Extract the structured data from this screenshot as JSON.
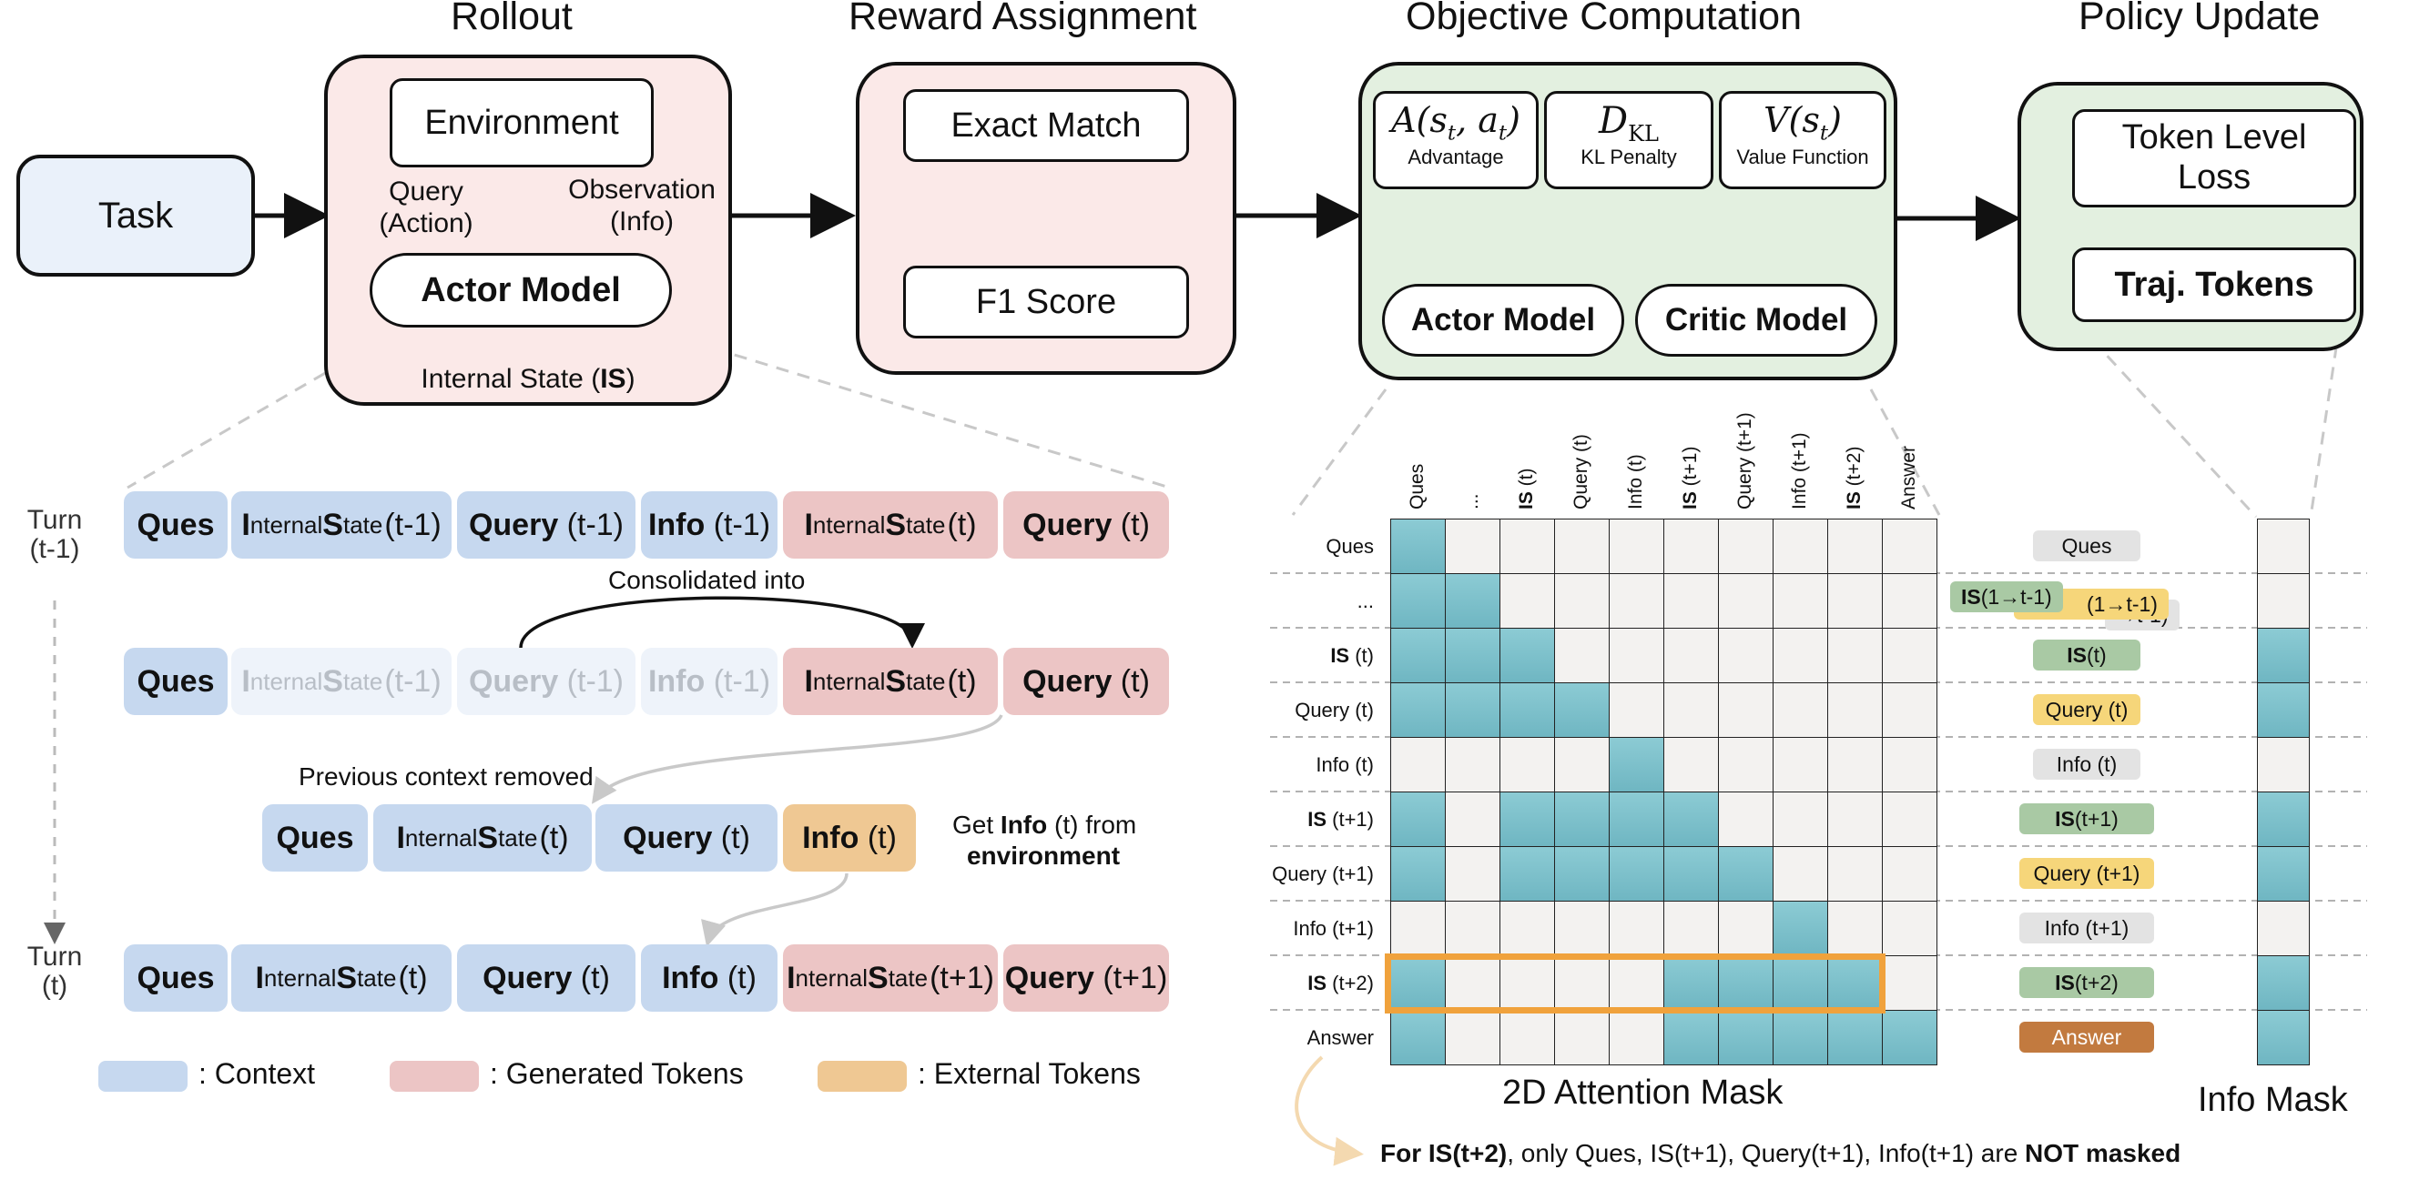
{
  "headers": {
    "rollout": "Rollout",
    "reward": "Reward Assignment",
    "objective": "Objective Computation",
    "policy": "Policy Update"
  },
  "task": "Task",
  "rollout": {
    "environment": "Environment",
    "query_label_1": "Query",
    "query_label_2": "(Action)",
    "obs_label_1": "Observation",
    "obs_label_2": "(Info)",
    "actor": "Actor Model",
    "internal_state_prefix": "Internal State (",
    "internal_state_bold": "IS",
    "internal_state_suffix": ")"
  },
  "reward": {
    "exact_match": "Exact Match",
    "f1": "F1 Score"
  },
  "objective": {
    "advantage_sym": "A(s_t, a_t)",
    "advantage": "Advantage",
    "kl_sym": "D_KL",
    "kl": "KL Penalty",
    "value_sym": "V(s_t)",
    "value": "Value Function",
    "actor": "Actor Model",
    "critic": "Critic Model"
  },
  "policy": {
    "token_loss_1": "Token Level",
    "token_loss_2": "Loss",
    "traj": "Traj. Tokens"
  },
  "turns": {
    "prev_1": "Turn",
    "prev_2": "(t-1)",
    "cur_1": "Turn",
    "cur_2": "(t)"
  },
  "rows": {
    "row1": [
      {
        "kind": "ques",
        "color": "blue",
        "bold": "Ques"
      },
      {
        "kind": "is",
        "color": "blue",
        "t": "(t-1)"
      },
      {
        "kind": "q",
        "color": "blue",
        "bold": "Query",
        "t": "(t-1)"
      },
      {
        "kind": "q",
        "color": "blue",
        "bold": "Info",
        "t": "(t-1)"
      },
      {
        "kind": "is",
        "color": "pink",
        "t": "(t)"
      },
      {
        "kind": "q",
        "color": "pink",
        "bold": "Query",
        "t": "(t)"
      }
    ],
    "row2": [
      {
        "kind": "ques",
        "color": "blue",
        "bold": "Ques"
      },
      {
        "kind": "is",
        "color": "faint",
        "t": "(t-1)"
      },
      {
        "kind": "q",
        "color": "faint",
        "bold": "Query",
        "t": "(t-1)"
      },
      {
        "kind": "q",
        "color": "faint",
        "bold": "Info",
        "t": "(t-1)"
      },
      {
        "kind": "is",
        "color": "pink",
        "t": "(t)"
      },
      {
        "kind": "q",
        "color": "pink",
        "bold": "Query",
        "t": "(t)"
      }
    ],
    "row3": [
      {
        "kind": "ques",
        "color": "blue",
        "bold": "Ques"
      },
      {
        "kind": "is",
        "color": "blue",
        "t": "(t)"
      },
      {
        "kind": "q",
        "color": "blue",
        "bold": "Query",
        "t": "(t)"
      },
      {
        "kind": "q",
        "color": "orange",
        "bold": "Info",
        "t": "(t)"
      }
    ],
    "row4": [
      {
        "kind": "ques",
        "color": "blue",
        "bold": "Ques"
      },
      {
        "kind": "is",
        "color": "blue",
        "t": "(t)"
      },
      {
        "kind": "q",
        "color": "blue",
        "bold": "Query",
        "t": "(t)"
      },
      {
        "kind": "q",
        "color": "blue",
        "bold": "Info",
        "t": "(t)"
      },
      {
        "kind": "is",
        "color": "pink",
        "t": "(t+1)"
      },
      {
        "kind": "q",
        "color": "pink",
        "bold": "Query",
        "t": "(t+1)"
      }
    ],
    "is_big_i": "I",
    "is_small_i": "nternal ",
    "is_big_s": "S",
    "is_small_s": "tate "
  },
  "notes": {
    "consolidated": "Consolidated into",
    "removed": "Previous context removed",
    "get_info_1": "Get ",
    "get_info_bold": "Info",
    "get_info_2": " (t) from",
    "get_info_env": "environment"
  },
  "legend": {
    "context": ": Context",
    "generated": ": Generated Tokens",
    "external": ": External Tokens"
  },
  "mask": {
    "title": "2D Attention Mask",
    "info_mask_title": "Info Mask",
    "columns": [
      {
        "pre": "",
        "bold": "",
        "post": "Ques"
      },
      {
        "pre": "",
        "bold": "",
        "post": "..."
      },
      {
        "pre": "",
        "bold": "IS",
        "post": " (t)"
      },
      {
        "pre": "",
        "bold": "",
        "post": "Query (t)"
      },
      {
        "pre": "",
        "bold": "",
        "post": "Info (t)"
      },
      {
        "pre": "",
        "bold": "IS",
        "post": " (t+1)"
      },
      {
        "pre": "",
        "bold": "",
        "post": "Query (t+1)"
      },
      {
        "pre": "",
        "bold": "",
        "post": "Info (t+1)"
      },
      {
        "pre": "",
        "bold": "IS",
        "post": " (t+2)"
      },
      {
        "pre": "",
        "bold": "",
        "post": "Answer"
      }
    ],
    "rows": [
      {
        "bold": "",
        "post": "Ques"
      },
      {
        "bold": "",
        "post": "..."
      },
      {
        "bold": "IS",
        "post": " (t)"
      },
      {
        "bold": "",
        "post": "Query (t)"
      },
      {
        "bold": "",
        "post": "Info (t)"
      },
      {
        "bold": "IS",
        "post": " (t+1)"
      },
      {
        "bold": "",
        "post": "Query (t+1)"
      },
      {
        "bold": "",
        "post": "Info (t+1)"
      },
      {
        "bold": "IS",
        "post": " (t+2)"
      },
      {
        "bold": "",
        "post": "Answer"
      }
    ],
    "matrix": [
      [
        1,
        0,
        0,
        0,
        0,
        0,
        0,
        0,
        0,
        0
      ],
      [
        1,
        1,
        0,
        0,
        0,
        0,
        0,
        0,
        0,
        0
      ],
      [
        1,
        1,
        1,
        0,
        0,
        0,
        0,
        0,
        0,
        0
      ],
      [
        1,
        1,
        1,
        1,
        0,
        0,
        0,
        0,
        0,
        0
      ],
      [
        0,
        0,
        0,
        0,
        1,
        0,
        0,
        0,
        0,
        0
      ],
      [
        1,
        0,
        1,
        1,
        1,
        1,
        0,
        0,
        0,
        0
      ],
      [
        1,
        0,
        1,
        1,
        1,
        1,
        1,
        0,
        0,
        0
      ],
      [
        0,
        0,
        0,
        0,
        0,
        0,
        0,
        1,
        0,
        0
      ],
      [
        1,
        0,
        0,
        0,
        0,
        1,
        1,
        1,
        1,
        0
      ],
      [
        1,
        0,
        0,
        0,
        0,
        1,
        1,
        1,
        1,
        1
      ]
    ],
    "info_mask": [
      0,
      0,
      1,
      1,
      0,
      1,
      1,
      0,
      1,
      1
    ],
    "highlight_row": 8,
    "tags": [
      {
        "bold": "",
        "text": "Ques",
        "color": "gray"
      },
      {
        "bold": "",
        "text": "",
        "color": "stack"
      },
      {
        "bold": "IS",
        "text": " (t)",
        "color": "green"
      },
      {
        "bold": "",
        "text": "Query (t)",
        "color": "yellow"
      },
      {
        "bold": "",
        "text": "Info (t)",
        "color": "gray"
      },
      {
        "bold": "IS",
        "text": " (t+1)",
        "color": "green"
      },
      {
        "bold": "",
        "text": "Query (t+1)",
        "color": "yellow"
      },
      {
        "bold": "",
        "text": "Info (t+1)",
        "color": "gray"
      },
      {
        "bold": "IS",
        "text": " (t+2)",
        "color": "green"
      },
      {
        "bold": "",
        "text": "Answer",
        "color": "brown"
      }
    ],
    "stack_tags": {
      "green_bold": "IS",
      "green": " (1→t-1)",
      "yellow": "(1→t-1)",
      "gray": "→t-1)"
    },
    "caption_pre": "For ",
    "caption_b1": "IS(t+2)",
    "caption_mid": ", only Ques, IS(t+1), Query(t+1), Info(t+1) are ",
    "caption_b2": "NOT masked"
  },
  "colors": {
    "context": "#c6d8ef",
    "generated": "#ecc5c5",
    "external": "#efc893",
    "mask_on": "#7cc0ca",
    "highlight": "#f0a23c"
  }
}
